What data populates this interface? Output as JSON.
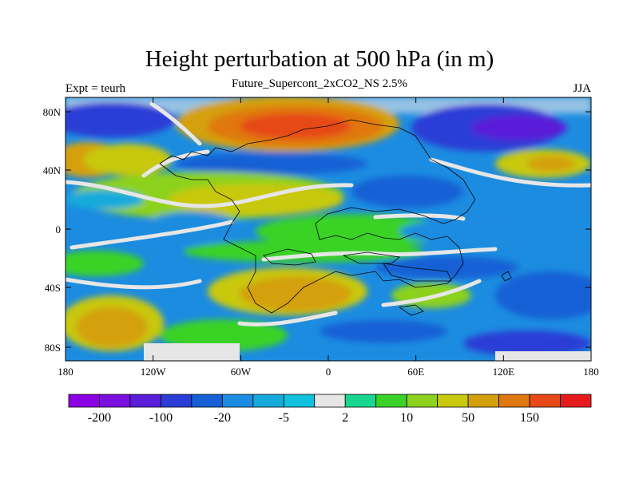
{
  "title": "Height perturbation at 500 hPa (in m)",
  "subtitle": "Future_Supercont_2xCO2_NS 2.5%",
  "left_label": "Expt = teurh",
  "right_label": "JJA",
  "lon_ticks": [
    "180",
    "120W",
    "60W",
    "0",
    "60E",
    "120E",
    "180"
  ],
  "lat_ticks": [
    "80N",
    "40N",
    "0",
    "40S",
    "80S"
  ],
  "colorbar": {
    "colors": [
      "#8c00e6",
      "#7a0fe0",
      "#5a1ed8",
      "#2a3dd6",
      "#1560d6",
      "#1c8ce0",
      "#14aadc",
      "#10c0dc",
      "#e6e6e6",
      "#18d690",
      "#3ad228",
      "#8cd21e",
      "#c8c80e",
      "#d4a00a",
      "#e07810",
      "#e64818",
      "#e61c1c"
    ],
    "labels": [
      "-200",
      "-100",
      "-20",
      "-5",
      "2",
      "10",
      "50",
      "150"
    ]
  }
}
